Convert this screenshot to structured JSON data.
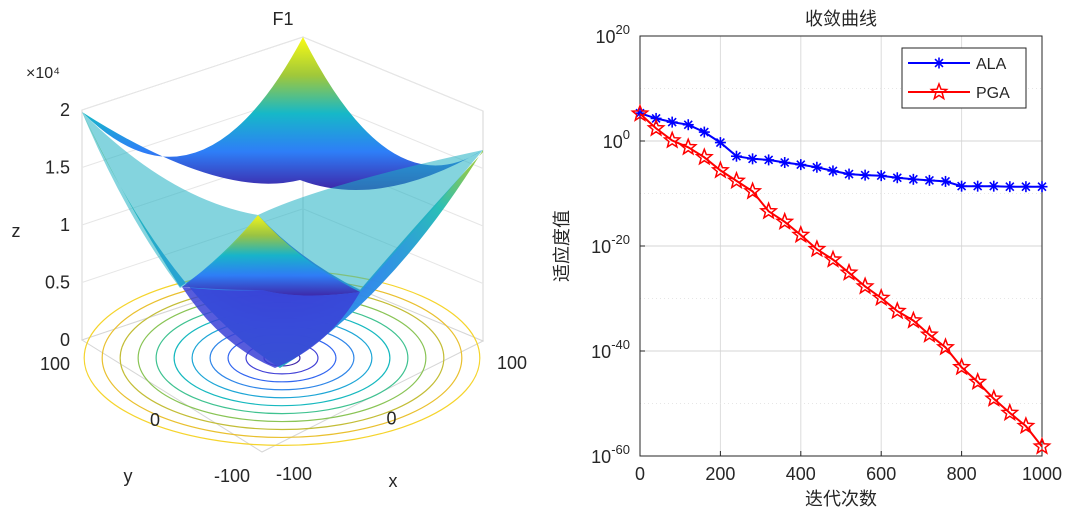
{
  "chart_data": [
    {
      "type": "surface3d",
      "title": "F1",
      "function": "x^2 + y^2",
      "xlabel": "x",
      "ylabel": "y",
      "zlabel": "z",
      "xlim": [
        -100,
        100
      ],
      "ylim": [
        -100,
        100
      ],
      "zlim": [
        0,
        20000
      ],
      "x_ticks": [
        "-100",
        "0",
        "100"
      ],
      "y_ticks": [
        "-100",
        "0",
        "100"
      ],
      "z_ticks": [
        "0",
        "0.5",
        "1",
        "1.5",
        "2"
      ],
      "z_exponent": "×10⁴",
      "contour_on_floor": true,
      "colormap": "parula",
      "grid": true
    },
    {
      "type": "line",
      "title": "收敛曲线",
      "xlabel": "迭代次数",
      "ylabel": "适应度值",
      "xlim": [
        0,
        1000
      ],
      "yscale": "log",
      "ylim_exponents": [
        -60,
        20
      ],
      "x_ticks": [
        "0",
        "200",
        "400",
        "600",
        "800",
        "1000"
      ],
      "y_ticks": [
        {
          "base": "10",
          "exp": "20"
        },
        {
          "base": "10",
          "exp": "0"
        },
        {
          "base": "10",
          "exp": "-20"
        },
        {
          "base": "10",
          "exp": "-40"
        },
        {
          "base": "10",
          "exp": "-60"
        }
      ],
      "grid": true,
      "legend_position": "top-right",
      "series": [
        {
          "name": "ALA",
          "color": "#0000ff",
          "marker": "asterisk",
          "x": [
            0,
            40,
            80,
            120,
            160,
            200,
            240,
            280,
            320,
            360,
            400,
            440,
            480,
            520,
            560,
            600,
            640,
            680,
            720,
            760,
            800,
            840,
            880,
            920,
            960,
            1000
          ],
          "log10_y": [
            5.3,
            4.3,
            3.6,
            3.1,
            1.7,
            -0.3,
            -2.9,
            -3.4,
            -3.6,
            -4.1,
            -4.5,
            -5.0,
            -5.7,
            -6.3,
            -6.5,
            -6.6,
            -7.0,
            -7.3,
            -7.5,
            -7.7,
            -8.6,
            -8.6,
            -8.6,
            -8.7,
            -8.7,
            -8.7
          ]
        },
        {
          "name": "PGA",
          "color": "#ff0000",
          "marker": "pentagram",
          "x": [
            0,
            40,
            80,
            120,
            160,
            200,
            240,
            280,
            320,
            360,
            400,
            440,
            480,
            520,
            560,
            600,
            640,
            680,
            720,
            760,
            800,
            840,
            880,
            920,
            960,
            1000
          ],
          "log10_y": [
            5.2,
            2.4,
            0.1,
            -1.2,
            -3.1,
            -5.6,
            -7.6,
            -9.6,
            -13.4,
            -15.4,
            -17.9,
            -20.6,
            -22.6,
            -25.1,
            -27.7,
            -29.9,
            -32.4,
            -34.2,
            -36.9,
            -39.3,
            -43.1,
            -45.9,
            -49.1,
            -51.8,
            -54.3,
            -58.2
          ]
        }
      ]
    }
  ]
}
